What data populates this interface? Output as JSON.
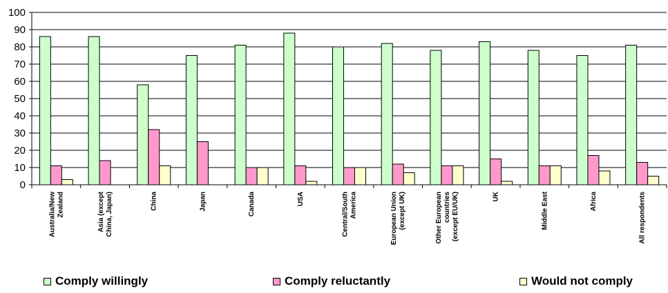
{
  "chart_data": {
    "type": "bar",
    "categories": [
      "Australia/New Zealand",
      "Asia (except China, Japan)",
      "China",
      "Japan",
      "Canada",
      "USA",
      "Central/South America",
      "European Union (except UK)",
      "Other European countries (except EU/UK)",
      "UK",
      "Middle East",
      "Africa",
      "All respondents"
    ],
    "series": [
      {
        "name": "Comply willingly",
        "color": "#ccffcc",
        "values": [
          86,
          86,
          58,
          75,
          81,
          88,
          80,
          82,
          78,
          83,
          78,
          75,
          81
        ]
      },
      {
        "name": "Comply reluctantly",
        "color": "#ff99cc",
        "values": [
          11,
          14,
          32,
          25,
          10,
          11,
          10,
          12,
          11,
          15,
          11,
          17,
          13
        ]
      },
      {
        "name": "Would not comply",
        "color": "#ffffcc",
        "values": [
          3,
          0,
          11,
          0,
          10,
          2,
          10,
          7,
          11,
          2,
          11,
          8,
          5
        ]
      }
    ],
    "yticks": [
      "0",
      "10",
      "20",
      "30",
      "40",
      "50",
      "60",
      "70",
      "80",
      "90",
      "100"
    ],
    "ylim": [
      0,
      100
    ],
    "grid": true,
    "legend_position": "bottom",
    "title": "",
    "xlabel": "",
    "ylabel": ""
  }
}
